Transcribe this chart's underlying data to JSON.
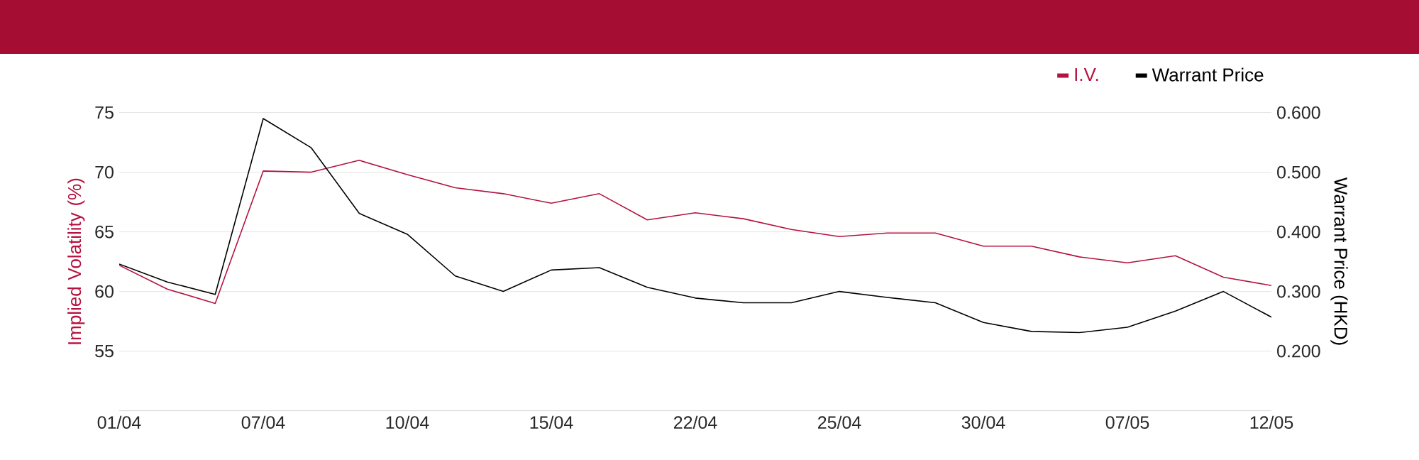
{
  "chart_data": {
    "type": "line",
    "categories": [
      "01/04",
      null,
      null,
      "07/04",
      null,
      null,
      "10/04",
      null,
      null,
      "15/04",
      null,
      null,
      "22/04",
      null,
      null,
      "25/04",
      null,
      null,
      "30/04",
      null,
      null,
      "07/05",
      null,
      null,
      "12/05"
    ],
    "series": [
      {
        "name": "I.V.",
        "color": "#b5123f",
        "values": [
          62.2,
          60.2,
          59.0,
          70.1,
          70.0,
          71.0,
          69.8,
          68.7,
          68.2,
          67.4,
          68.2,
          66.0,
          66.6,
          66.1,
          65.2,
          64.6,
          64.9,
          64.9,
          63.8,
          63.8,
          62.9,
          62.4,
          63.0,
          61.2,
          60.5
        ]
      },
      {
        "name": "Warrant Price",
        "color": "#000000",
        "axis": "y2",
        "values": [
          0.346,
          0.316,
          0.295,
          0.59,
          0.541,
          0.431,
          0.396,
          0.326,
          0.3,
          0.336,
          0.34,
          0.307,
          0.289,
          0.281,
          0.281,
          0.3,
          0.29,
          0.281,
          0.248,
          0.233,
          0.231,
          0.24,
          0.267,
          0.3,
          0.257
        ]
      }
    ],
    "ylabel": "Implied Volatility (%)",
    "y2label": "Warrant Price (HKD)",
    "ylim": [
      50,
      75
    ],
    "yticks": [
      55,
      60,
      65,
      70,
      75
    ],
    "y2lim": [
      0.1,
      0.6
    ],
    "y2ticks": [
      {
        "value": 0.2,
        "label": "0.200"
      },
      {
        "value": 0.3,
        "label": "0.300"
      },
      {
        "value": 0.4,
        "label": "0.400"
      },
      {
        "value": 0.5,
        "label": "0.500"
      },
      {
        "value": 0.6,
        "label": "0.600"
      }
    ],
    "grid": "y",
    "legend": "top right",
    "line_style": "solid"
  }
}
